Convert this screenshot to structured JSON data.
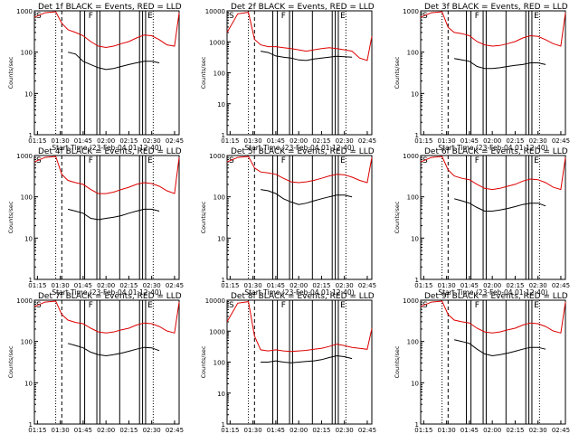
{
  "figure": {
    "xlabel": "Start Time (23-Feb-04 01:12:40)",
    "ylabel": "Counts/sec",
    "x_tick_labels": [
      "01:15",
      "01:30",
      "01:45",
      "02:00",
      "02:15",
      "02:30",
      "02:45"
    ],
    "y_tick_labels": [
      "1",
      "10",
      "100",
      "1000",
      "10000"
    ],
    "colors": {
      "events": "#000000",
      "lld": "#dd0000",
      "background": "#ffffff"
    }
  },
  "chart_data": [
    {
      "type": "line",
      "title": "Det 1f BLACK = Events, RED = LLD",
      "xlabel": "Start Time (23-Feb-04 01:12:40)",
      "ylabel": "Counts/sec",
      "y_scale": "log",
      "ylim": [
        1,
        1000
      ],
      "x_tick_labels": [
        "01:15",
        "01:30",
        "01:45",
        "02:00",
        "02:15",
        "02:30",
        "02:45"
      ],
      "x": [
        "01:13",
        "01:20",
        "01:27",
        "01:31",
        "01:35",
        "01:40",
        "01:45",
        "01:50",
        "01:55",
        "02:00",
        "02:05",
        "02:10",
        "02:15",
        "02:20",
        "02:25",
        "02:30",
        "02:35",
        "02:40",
        "02:45",
        "02:48"
      ],
      "series": [
        {
          "name": "BLACK = Events",
          "color": "#000000",
          "values": [
            null,
            null,
            null,
            null,
            100,
            90,
            60,
            50,
            42,
            38,
            40,
            45,
            50,
            55,
            60,
            60,
            55,
            null,
            null,
            null
          ]
        },
        {
          "name": "RED = LLD",
          "color": "#dd0000",
          "values": [
            700,
            900,
            950,
            500,
            350,
            300,
            250,
            180,
            140,
            130,
            140,
            160,
            180,
            220,
            260,
            250,
            200,
            150,
            140,
            900
          ]
        }
      ],
      "markers": {
        "top_left": "S",
        "top_mid": "F",
        "top_right": "E"
      }
    },
    {
      "type": "line",
      "title": "Det 2f BLACK = Events, RED = LLD",
      "xlabel": "Start Time (23-Feb-04 01:12:40)",
      "ylabel": "Counts/sec",
      "y_scale": "log",
      "ylim": [
        1,
        10000
      ],
      "x_tick_labels": [
        "01:15",
        "01:30",
        "01:45",
        "02:00",
        "02:15",
        "02:30",
        "02:45"
      ],
      "x": [
        "01:13",
        "01:20",
        "01:27",
        "01:31",
        "01:35",
        "01:40",
        "01:45",
        "01:50",
        "01:55",
        "02:00",
        "02:05",
        "02:10",
        "02:15",
        "02:20",
        "02:25",
        "02:30",
        "02:35",
        "02:40",
        "02:45",
        "02:48"
      ],
      "series": [
        {
          "name": "BLACK = Events",
          "color": "#000000",
          "values": [
            null,
            null,
            null,
            null,
            500,
            450,
            350,
            320,
            300,
            260,
            250,
            280,
            300,
            320,
            340,
            330,
            320,
            null,
            null,
            null
          ]
        },
        {
          "name": "RED = LLD",
          "color": "#dd0000",
          "values": [
            2000,
            8000,
            9000,
            1200,
            800,
            700,
            700,
            650,
            600,
            550,
            500,
            550,
            600,
            650,
            600,
            550,
            500,
            300,
            250,
            1500
          ]
        }
      ],
      "markers": {
        "top_left": "S",
        "top_mid": "F",
        "top_right": "E"
      }
    },
    {
      "type": "line",
      "title": "Det 3f BLACK = Events, RED = LLD",
      "xlabel": "Start Time (23-Feb-04 01:12:40)",
      "ylabel": "Counts/sec",
      "y_scale": "log",
      "ylim": [
        1,
        1000
      ],
      "x_tick_labels": [
        "01:15",
        "01:30",
        "01:45",
        "02:00",
        "02:15",
        "02:30",
        "02:45"
      ],
      "x": [
        "01:13",
        "01:20",
        "01:27",
        "01:31",
        "01:35",
        "01:40",
        "01:45",
        "01:50",
        "01:55",
        "02:00",
        "02:05",
        "02:10",
        "02:15",
        "02:20",
        "02:25",
        "02:30",
        "02:35",
        "02:40",
        "02:45",
        "02:48"
      ],
      "series": [
        {
          "name": "BLACK = Events",
          "color": "#000000",
          "values": [
            null,
            null,
            null,
            null,
            70,
            65,
            60,
            45,
            40,
            40,
            42,
            45,
            48,
            50,
            55,
            55,
            50,
            null,
            null,
            null
          ]
        },
        {
          "name": "RED = LLD",
          "color": "#dd0000",
          "values": [
            700,
            900,
            950,
            400,
            300,
            280,
            250,
            180,
            150,
            140,
            145,
            160,
            180,
            220,
            250,
            240,
            200,
            160,
            140,
            900
          ]
        }
      ],
      "markers": {
        "top_left": "S",
        "top_mid": "F",
        "top_right": "E"
      }
    },
    {
      "type": "line",
      "title": "Det 4f BLACK = Events, RED = LLD",
      "xlabel": "Start Time (23-Feb-04 01:12:40)",
      "ylabel": "Counts/sec",
      "y_scale": "log",
      "ylim": [
        1,
        1000
      ],
      "x_tick_labels": [
        "01:15",
        "01:30",
        "01:45",
        "02:00",
        "02:15",
        "02:30",
        "02:45"
      ],
      "x": [
        "01:13",
        "01:20",
        "01:27",
        "01:31",
        "01:35",
        "01:40",
        "01:45",
        "01:50",
        "01:55",
        "02:00",
        "02:05",
        "02:10",
        "02:15",
        "02:20",
        "02:25",
        "02:30",
        "02:35",
        "02:40",
        "02:45",
        "02:48"
      ],
      "series": [
        {
          "name": "BLACK = Events",
          "color": "#000000",
          "values": [
            null,
            null,
            null,
            null,
            50,
            45,
            40,
            30,
            28,
            30,
            32,
            35,
            40,
            45,
            50,
            50,
            45,
            null,
            null,
            null
          ]
        },
        {
          "name": "RED = LLD",
          "color": "#dd0000",
          "values": [
            700,
            900,
            950,
            350,
            250,
            220,
            200,
            150,
            120,
            120,
            130,
            150,
            170,
            200,
            220,
            210,
            180,
            140,
            120,
            900
          ]
        }
      ],
      "markers": {
        "top_left": "S",
        "top_mid": "F",
        "top_right": "E"
      }
    },
    {
      "type": "line",
      "title": "Det 5f BLACK = Events, RED = LLD",
      "xlabel": "Start Time (23-Feb-04 01:12:40)",
      "ylabel": "Counts/sec",
      "y_scale": "log",
      "ylim": [
        1,
        1000
      ],
      "x_tick_labels": [
        "01:15",
        "01:30",
        "01:45",
        "02:00",
        "02:15",
        "02:30",
        "02:45"
      ],
      "x": [
        "01:13",
        "01:20",
        "01:27",
        "01:31",
        "01:35",
        "01:40",
        "01:45",
        "01:50",
        "01:55",
        "02:00",
        "02:05",
        "02:10",
        "02:15",
        "02:20",
        "02:25",
        "02:30",
        "02:35",
        "02:40",
        "02:45",
        "02:48"
      ],
      "series": [
        {
          "name": "BLACK = Events",
          "color": "#000000",
          "values": [
            null,
            null,
            null,
            null,
            150,
            140,
            120,
            90,
            75,
            65,
            70,
            80,
            90,
            100,
            110,
            110,
            100,
            null,
            null,
            null
          ]
        },
        {
          "name": "RED = LLD",
          "color": "#dd0000",
          "values": [
            700,
            900,
            950,
            500,
            400,
            380,
            350,
            280,
            230,
            220,
            230,
            250,
            280,
            320,
            350,
            340,
            300,
            250,
            220,
            900
          ]
        }
      ],
      "markers": {
        "top_left": "S",
        "top_mid": "F",
        "top_right": "E"
      }
    },
    {
      "type": "line",
      "title": "Det 6f BLACK = Events, RED = LLD",
      "xlabel": "Start Time (23-Feb-04 01:12:40)",
      "ylabel": "Counts/sec",
      "y_scale": "log",
      "ylim": [
        1,
        1000
      ],
      "x_tick_labels": [
        "01:15",
        "01:30",
        "01:45",
        "02:00",
        "02:15",
        "02:30",
        "02:45"
      ],
      "x": [
        "01:13",
        "01:20",
        "01:27",
        "01:31",
        "01:35",
        "01:40",
        "01:45",
        "01:50",
        "01:55",
        "02:00",
        "02:05",
        "02:10",
        "02:15",
        "02:20",
        "02:25",
        "02:30",
        "02:35",
        "02:40",
        "02:45",
        "02:48"
      ],
      "series": [
        {
          "name": "BLACK = Events",
          "color": "#000000",
          "values": [
            null,
            null,
            null,
            null,
            90,
            80,
            70,
            55,
            45,
            45,
            48,
            52,
            58,
            65,
            70,
            70,
            60,
            null,
            null,
            null
          ]
        },
        {
          "name": "RED = LLD",
          "color": "#dd0000",
          "values": [
            700,
            900,
            950,
            450,
            320,
            280,
            260,
            200,
            160,
            150,
            160,
            180,
            200,
            240,
            270,
            260,
            220,
            170,
            150,
            900
          ]
        }
      ],
      "markers": {
        "top_left": "S",
        "top_mid": "F",
        "top_right": "E"
      }
    },
    {
      "type": "line",
      "title": "Det 7f BLACK = Events, RED = LLD",
      "xlabel": "Start Time (23-Feb-04 01:12:40)",
      "ylabel": "Counts/sec",
      "y_scale": "log",
      "ylim": [
        1,
        1000
      ],
      "x_tick_labels": [
        "01:15",
        "01:30",
        "01:45",
        "02:00",
        "02:15",
        "02:30",
        "02:45"
      ],
      "x": [
        "01:13",
        "01:20",
        "01:27",
        "01:31",
        "01:35",
        "01:40",
        "01:45",
        "01:50",
        "01:55",
        "02:00",
        "02:05",
        "02:10",
        "02:15",
        "02:20",
        "02:25",
        "02:30",
        "02:35",
        "02:40",
        "02:45",
        "02:48"
      ],
      "series": [
        {
          "name": "BLACK = Events",
          "color": "#000000",
          "values": [
            null,
            null,
            null,
            null,
            90,
            80,
            70,
            55,
            48,
            45,
            48,
            52,
            58,
            65,
            72,
            70,
            60,
            null,
            null,
            null
          ]
        },
        {
          "name": "RED = LLD",
          "color": "#dd0000",
          "values": [
            700,
            900,
            950,
            450,
            330,
            290,
            270,
            210,
            170,
            160,
            170,
            190,
            210,
            250,
            280,
            270,
            230,
            180,
            160,
            900
          ]
        }
      ],
      "markers": {
        "top_left": "S",
        "top_mid": "F",
        "top_right": "E"
      }
    },
    {
      "type": "line",
      "title": "Det 8f BLACK = Events, RED = LLD",
      "xlabel": "Start Time (23-Feb-04 01:12:40)",
      "ylabel": "Counts/sec",
      "y_scale": "log",
      "ylim": [
        1,
        10000
      ],
      "x_tick_labels": [
        "01:15",
        "01:30",
        "01:45",
        "02:00",
        "02:15",
        "02:30",
        "02:45"
      ],
      "x": [
        "01:13",
        "01:20",
        "01:27",
        "01:31",
        "01:35",
        "01:40",
        "01:45",
        "01:50",
        "01:55",
        "02:00",
        "02:05",
        "02:10",
        "02:15",
        "02:20",
        "02:25",
        "02:30",
        "02:35",
        "02:40",
        "02:45",
        "02:48"
      ],
      "series": [
        {
          "name": "BLACK = Events",
          "color": "#000000",
          "values": [
            null,
            null,
            null,
            null,
            100,
            100,
            110,
            100,
            95,
            100,
            105,
            110,
            120,
            140,
            160,
            150,
            130,
            null,
            null,
            null
          ]
        },
        {
          "name": "RED = LLD",
          "color": "#dd0000",
          "values": [
            2000,
            8000,
            9000,
            700,
            250,
            230,
            250,
            230,
            220,
            230,
            240,
            260,
            280,
            320,
            380,
            340,
            300,
            280,
            260,
            1200
          ]
        }
      ],
      "markers": {
        "top_left": "S",
        "top_mid": "F",
        "top_right": "E"
      }
    },
    {
      "type": "line",
      "title": "Det 9f BLACK = Events, RED = LLD",
      "xlabel": "Start Time (23-Feb-04 01:12:40)",
      "ylabel": "Counts/sec",
      "y_scale": "log",
      "ylim": [
        1,
        1000
      ],
      "x_tick_labels": [
        "01:15",
        "01:30",
        "01:45",
        "02:00",
        "02:15",
        "02:30",
        "02:45"
      ],
      "x": [
        "01:13",
        "01:20",
        "01:27",
        "01:31",
        "01:35",
        "01:40",
        "01:45",
        "01:50",
        "01:55",
        "02:00",
        "02:05",
        "02:10",
        "02:15",
        "02:20",
        "02:25",
        "02:30",
        "02:35",
        "02:40",
        "02:45",
        "02:48"
      ],
      "series": [
        {
          "name": "BLACK = Events",
          "color": "#000000",
          "values": [
            null,
            null,
            null,
            null,
            110,
            100,
            90,
            65,
            50,
            45,
            48,
            52,
            58,
            65,
            72,
            72,
            65,
            null,
            null,
            null
          ]
        },
        {
          "name": "RED = LLD",
          "color": "#dd0000",
          "values": [
            700,
            900,
            950,
            450,
            330,
            300,
            280,
            210,
            170,
            160,
            170,
            190,
            210,
            250,
            280,
            270,
            230,
            180,
            160,
            900
          ]
        }
      ],
      "markers": {
        "top_left": "S",
        "top_mid": "F",
        "top_right": "E"
      }
    }
  ]
}
